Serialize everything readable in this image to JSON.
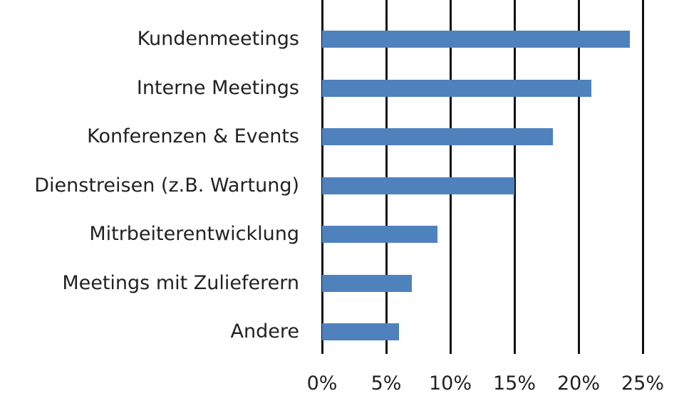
{
  "chart_data": {
    "type": "bar",
    "orientation": "horizontal",
    "title": "",
    "xlabel": "",
    "ylabel": "",
    "categories": [
      "Kundenmeetings",
      "Interne Meetings",
      "Konferenzen & Events",
      "Dienstreisen (z.B. Wartung)",
      "Mitrbeiterentwicklung",
      "Meetings mit Zulieferern",
      "Andere"
    ],
    "values": [
      24,
      21,
      18,
      15,
      9,
      7,
      6
    ],
    "unit": "%",
    "xlim": [
      0,
      25
    ],
    "xticks": [
      "0%",
      "5%",
      "10%",
      "15%",
      "20%",
      "25%"
    ],
    "grid": true,
    "bar_color": "#4f81bd"
  }
}
